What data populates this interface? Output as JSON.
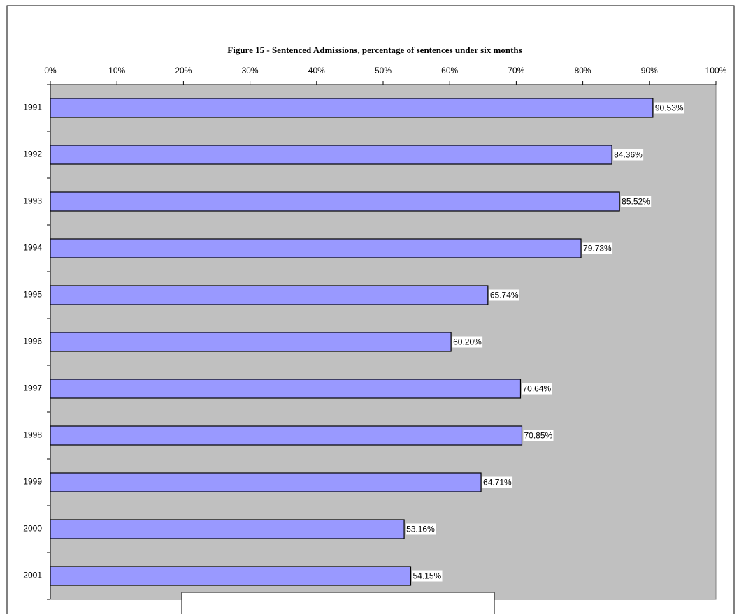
{
  "chart_data": {
    "type": "bar",
    "orientation": "horizontal",
    "title": "Figure 15 - Sentenced Admissions, percentage of sentences under six months",
    "categories": [
      "1991",
      "1992",
      "1993",
      "1994",
      "1995",
      "1996",
      "1997",
      "1998",
      "1999",
      "2000",
      "2001"
    ],
    "values": [
      90.53,
      84.36,
      85.52,
      79.73,
      65.74,
      60.2,
      70.64,
      70.85,
      64.71,
      53.16,
      54.15
    ],
    "value_labels": [
      "90.53%",
      "84.36%",
      "85.52%",
      "79.73%",
      "65.74%",
      "60.20%",
      "70.64%",
      "70.85%",
      "64.71%",
      "53.16%",
      "54.15%"
    ],
    "color": "#9999ff",
    "background": "#c0c0c0",
    "xlim": [
      0,
      100
    ],
    "xticks": [
      {
        "value": 0,
        "label": "0%"
      },
      {
        "value": 10,
        "label": "10%"
      },
      {
        "value": 20,
        "label": "20%"
      },
      {
        "value": 30,
        "label": "30%"
      },
      {
        "value": 40,
        "label": "40%"
      },
      {
        "value": 50,
        "label": "50%"
      },
      {
        "value": 60,
        "label": "60%"
      },
      {
        "value": 70,
        "label": "70%"
      },
      {
        "value": 80,
        "label": "80%"
      },
      {
        "value": 90,
        "label": "90%"
      },
      {
        "value": 100,
        "label": "100%"
      }
    ],
    "grid": false
  }
}
